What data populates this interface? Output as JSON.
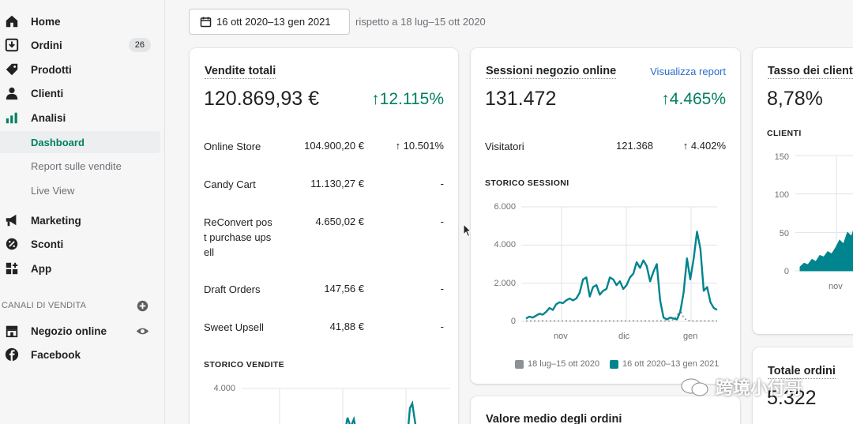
{
  "sidebar": {
    "items": [
      {
        "label": "Home"
      },
      {
        "label": "Ordini",
        "badge": "26"
      },
      {
        "label": "Prodotti"
      },
      {
        "label": "Clienti"
      },
      {
        "label": "Analisi"
      }
    ],
    "analytics_sub": [
      {
        "label": "Dashboard"
      },
      {
        "label": "Report sulle vendite"
      },
      {
        "label": "Live View"
      }
    ],
    "items2": [
      {
        "label": "Marketing"
      },
      {
        "label": "Sconti"
      },
      {
        "label": "App"
      }
    ],
    "channels_title": "CANALI DI VENDITA",
    "channels": [
      {
        "label": "Negozio online"
      },
      {
        "label": "Facebook"
      }
    ]
  },
  "toolbar": {
    "date_range": "16 ott 2020–13 gen 2021",
    "compare_text": "rispetto a 18 lug–15 ott 2020"
  },
  "sales_card": {
    "title": "Vendite totali",
    "value": "120.869,93 €",
    "change": "↑12.115%",
    "rows": [
      {
        "label": "Online Store",
        "value": "104.900,20 €",
        "change": "↑ 10.501%"
      },
      {
        "label": "Candy Cart",
        "value": "11.130,27 €",
        "change": "-"
      },
      {
        "label": "ReConvert pos\nt purchase ups\nell",
        "value": "4.650,02 €",
        "change": "-"
      },
      {
        "label": "Draft Orders",
        "value": "147,56 €",
        "change": "-"
      },
      {
        "label": "Sweet Upsell",
        "value": "41,88 €",
        "change": "-"
      }
    ],
    "history_title": "STORICO VENDITE",
    "history_axis_top": "4.000"
  },
  "sessions_card": {
    "title": "Sessioni negozio online",
    "link": "Visualizza report",
    "value": "131.472",
    "change": "↑4.465%",
    "visitors_label": "Visitatori",
    "visitors_value": "121.368",
    "visitors_change": "↑ 4.402%",
    "history_title": "STORICO SESSIONI"
  },
  "conversion_card": {
    "title": "Tasso dei clienti",
    "value": "8,78%",
    "subhead": "CLIENTI"
  },
  "orders_card": {
    "title": "Totale ordini",
    "value": "5.322"
  },
  "aov_card": {
    "title": "Valore medio degli ordini"
  },
  "watermark": "跨境小付哥",
  "colors": {
    "accent": "#008060",
    "series": "#00848e",
    "link": "#2c6ecb"
  },
  "chart_data": [
    {
      "type": "line",
      "title": "STORICO SESSIONI",
      "xlabel": "",
      "ylabel": "",
      "x_ticks": [
        "nov",
        "dic",
        "gen"
      ],
      "y_ticks": [
        "0",
        "2.000",
        "4.000",
        "6.000"
      ],
      "ylim": [
        0,
        6000
      ],
      "legend": "bottom",
      "series": [
        {
          "name": "16 ott 2020–13 gen 2021",
          "color": "#00848e",
          "values": [
            150,
            250,
            200,
            300,
            400,
            350,
            500,
            700,
            600,
            900,
            1000,
            950,
            1100,
            1200,
            1100,
            1200,
            1500,
            2200,
            2300,
            1300,
            1800,
            1900,
            1400,
            1600,
            1700,
            2300,
            2200,
            1900,
            2100,
            1700,
            1900,
            2300,
            2500,
            3100,
            2800,
            3200,
            2900,
            2100,
            2600,
            3000,
            1100,
            200,
            100,
            200,
            150,
            100,
            500,
            1500,
            3300,
            2200,
            3300,
            4700,
            3800,
            1600,
            1800,
            1000,
            700,
            600
          ]
        },
        {
          "name": "18 lug–15 ott 2020",
          "color": "#8c9196",
          "values": [
            20,
            20,
            30,
            20,
            20,
            30,
            20,
            20,
            30,
            20,
            20,
            20,
            30,
            20,
            20,
            20,
            30,
            20,
            20,
            20,
            30,
            20,
            20,
            20,
            20,
            30,
            20,
            20,
            30,
            20,
            20,
            20,
            30,
            20,
            20,
            20,
            30,
            20,
            20,
            20,
            30,
            20,
            20,
            20,
            100,
            300,
            600,
            200,
            50,
            30,
            20,
            20,
            30,
            20,
            20,
            30,
            20,
            20
          ]
        }
      ]
    },
    {
      "type": "area",
      "title": "CLIENTI",
      "y_ticks": [
        "0",
        "50",
        "100",
        "150"
      ],
      "ylim": [
        0,
        150
      ],
      "x_ticks": [
        "nov"
      ],
      "series": [
        {
          "name": "",
          "values": [
            5,
            10,
            8,
            15,
            12,
            20,
            18,
            25,
            22,
            30,
            40,
            35,
            50,
            45,
            60,
            70,
            90
          ]
        }
      ]
    },
    {
      "type": "line",
      "title": "STORICO VENDITE",
      "y_ticks": [
        "4.000"
      ],
      "series": [
        {
          "name": "",
          "values": []
        }
      ]
    }
  ]
}
